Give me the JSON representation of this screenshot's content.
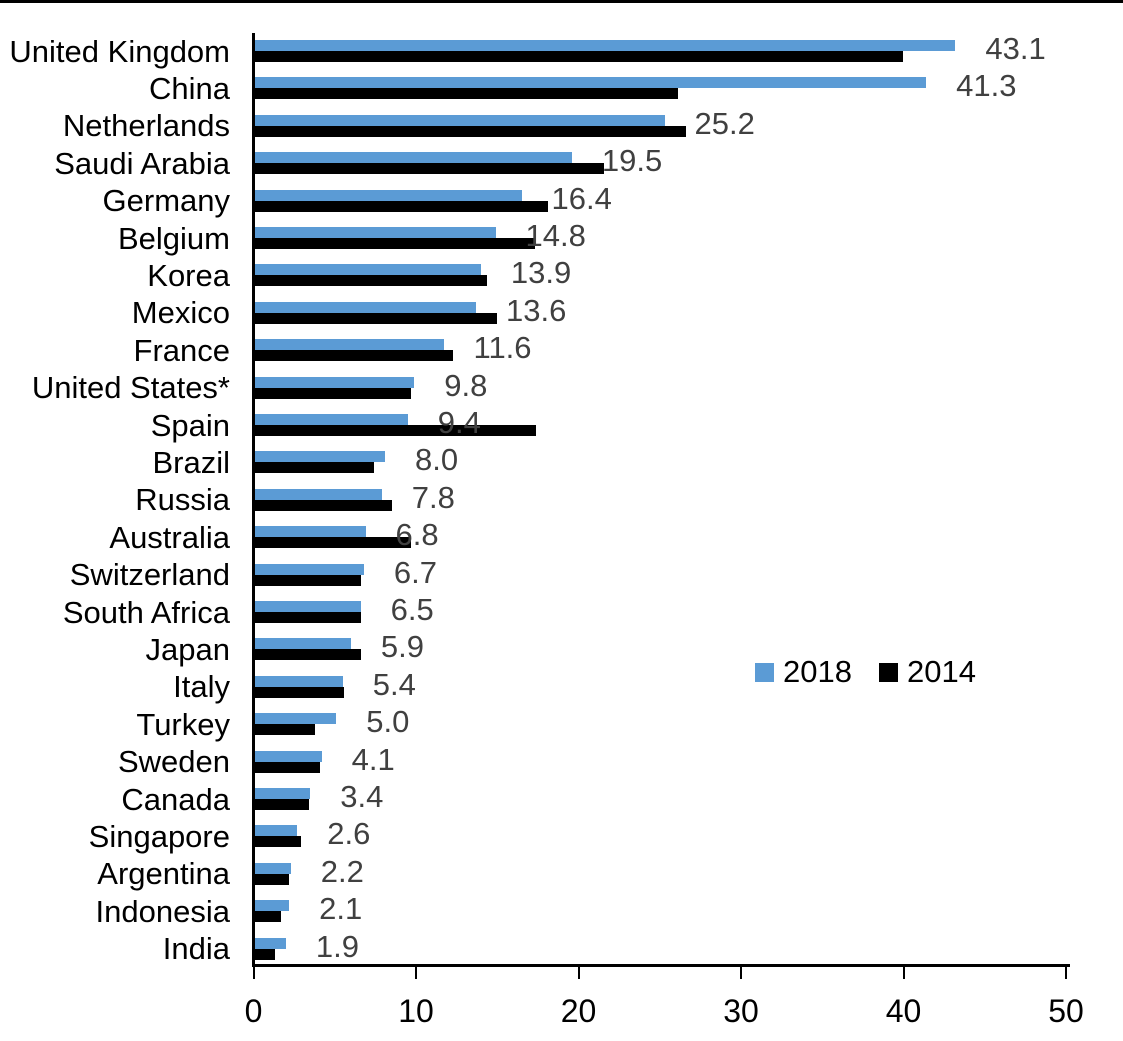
{
  "chart_data": {
    "type": "bar",
    "orientation": "horizontal",
    "title": "",
    "xlabel": "",
    "ylabel": "",
    "xlim": [
      0,
      50
    ],
    "x_ticks": [
      "0",
      "10",
      "20",
      "30",
      "40",
      "50"
    ],
    "grid": false,
    "legend_position": "middle-right",
    "categories": [
      "United Kingdom",
      "China",
      "Netherlands",
      "Saudi Arabia",
      "Germany",
      "Belgium",
      "Korea",
      "Mexico",
      "France",
      "United States*",
      "Spain",
      "Brazil",
      "Russia",
      "Australia",
      "Switzerland",
      "South Africa",
      "Japan",
      "Italy",
      "Turkey",
      "Sweden",
      "Canada",
      "Singapore",
      "Argentina",
      "Indonesia",
      "India"
    ],
    "series": [
      {
        "name": "2018",
        "color": "#5B9BD5",
        "values": [
          43.1,
          41.3,
          25.2,
          19.5,
          16.4,
          14.8,
          13.9,
          13.6,
          11.6,
          9.8,
          9.4,
          8.0,
          7.8,
          6.8,
          6.7,
          6.5,
          5.9,
          5.4,
          5.0,
          4.1,
          3.4,
          2.6,
          2.2,
          2.1,
          1.9
        ],
        "data_labels": [
          "43.1",
          "41.3",
          "25.2",
          "19.5",
          "16.4",
          "14.8",
          "13.9",
          "13.6",
          "11.6",
          "9.8",
          "9.4",
          "8.0",
          "7.8",
          "6.8",
          "6.7",
          "6.5",
          "5.9",
          "5.4",
          "5.0",
          "4.1",
          "3.4",
          "2.6",
          "2.2",
          "2.1",
          "1.9"
        ]
      },
      {
        "name": "2014",
        "color": "#000000",
        "values": [
          39.9,
          26.0,
          26.5,
          21.5,
          18.0,
          17.2,
          14.3,
          14.9,
          12.2,
          9.6,
          17.3,
          7.3,
          8.4,
          9.6,
          6.5,
          6.5,
          6.5,
          5.5,
          3.7,
          4.0,
          3.3,
          2.8,
          2.1,
          1.6,
          1.2
        ]
      }
    ],
    "value_label_color": "#404040",
    "axis_color": "#000000"
  },
  "legend": {
    "items": [
      {
        "label": "2018",
        "color": "#5B9BD5"
      },
      {
        "label": "2014",
        "color": "#000000"
      }
    ]
  }
}
